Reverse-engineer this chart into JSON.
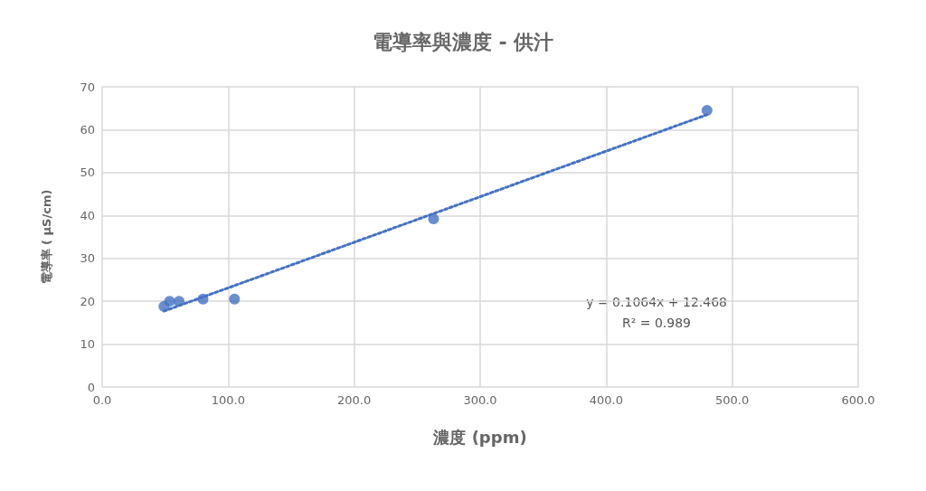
{
  "chart_data": {
    "type": "scatter",
    "title": "電導率與濃度 - 供汁",
    "xlabel": "濃度 (ppm)",
    "ylabel": "電導率 ( μS/cm)",
    "series": [
      {
        "color": "#4472c4",
        "marker": "circle",
        "x": [
          49,
          53.5,
          61,
          80,
          105,
          263,
          480
        ],
        "values": [
          18.8,
          20.0,
          20.0,
          20.5,
          20.5,
          39.2,
          64.5
        ]
      },
      {
        "type": "line",
        "color": "#4472c4",
        "marker": "none",
        "line_style": "dotted",
        "x": [
          49,
          480
        ],
        "values": [
          17.7,
          63.5
        ]
      }
    ],
    "xlim": [
      0,
      600
    ],
    "xticks": [
      {
        "value": 0,
        "label": "0.0"
      },
      {
        "value": 100,
        "label": "100.0"
      },
      {
        "value": 200,
        "label": "200.0"
      },
      {
        "value": 300,
        "label": "300.0"
      },
      {
        "value": 400,
        "label": "400.0"
      },
      {
        "value": 500,
        "label": "500.0"
      },
      {
        "value": 600,
        "label": "600.0"
      }
    ],
    "ylim": [
      0,
      70
    ],
    "yticks": [
      0,
      10,
      20,
      30,
      40,
      50,
      60,
      70
    ],
    "grid": true,
    "annotations": [
      "y = 0.1064x + 12.468",
      "R² = 0.989"
    ]
  }
}
